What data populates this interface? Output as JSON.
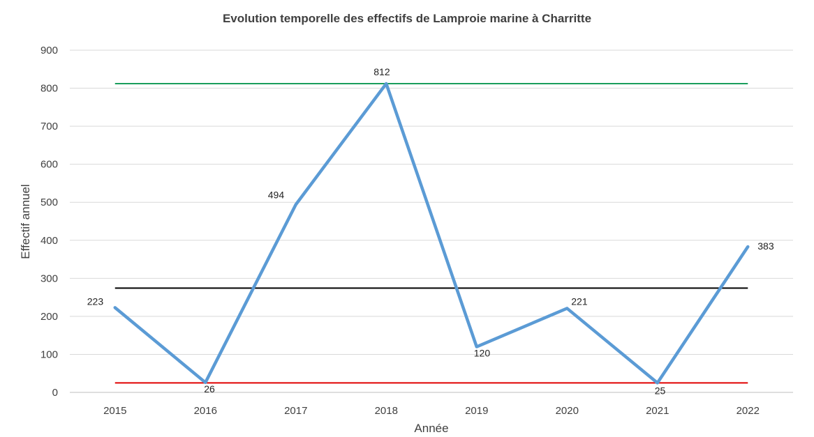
{
  "chart_data": {
    "type": "line",
    "title": "Evolution temporelle des effectifs de Lamproie marine à Charritte",
    "xlabel": "Année",
    "ylabel": "Effectif annuel",
    "categories": [
      "2015",
      "2016",
      "2017",
      "2018",
      "2019",
      "2020",
      "2021",
      "2022"
    ],
    "series": [
      {
        "values": [
          223,
          26,
          494,
          812,
          120,
          221,
          25,
          383
        ],
        "color": "#5b9bd5"
      }
    ],
    "reference_lines": [
      {
        "value": 812,
        "color": "#1a9e5c"
      },
      {
        "value": 274.25,
        "color": "#000000"
      },
      {
        "value": 25,
        "color": "#e00000"
      }
    ],
    "ylim": [
      0,
      900
    ],
    "yticks": [
      "0",
      "100",
      "200",
      "300",
      "400",
      "500",
      "600",
      "700",
      "800",
      "900"
    ],
    "grid": true,
    "legend": "none"
  }
}
